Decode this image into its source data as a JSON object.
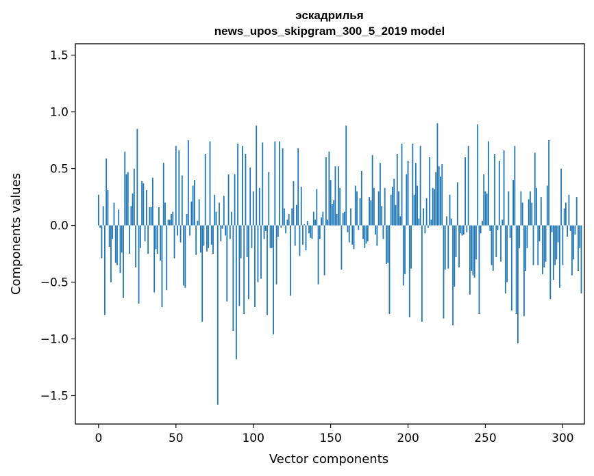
{
  "chart_data": {
    "type": "bar",
    "title": "эскадрилья",
    "subtitle": "news_upos_skipgram_300_5_2019 model",
    "xlabel": "Vector components",
    "ylabel": "Components values",
    "xlim": [
      -15,
      314
    ],
    "ylim": [
      -1.75,
      1.6
    ],
    "x_ticks": [
      0,
      50,
      100,
      150,
      200,
      250,
      300
    ],
    "x_tick_labels": [
      "0",
      "50",
      "100",
      "150",
      "200",
      "250",
      "300"
    ],
    "y_ticks": [
      -1.5,
      -1.0,
      -0.5,
      0.0,
      0.5,
      1.0,
      1.5
    ],
    "y_tick_labels": [
      "−1.5",
      "−1.0",
      "−0.5",
      "0.0",
      "0.5",
      "1.0",
      "1.5"
    ],
    "grid": false,
    "bar_color": "#1f77b4",
    "x_start": 0,
    "values": [
      0.27,
      -0.02,
      -0.29,
      0.17,
      -0.79,
      0.59,
      0.31,
      -0.19,
      -0.5,
      -0.12,
      0.2,
      -0.33,
      -0.35,
      0.14,
      -0.42,
      -0.24,
      -0.64,
      0.65,
      0.45,
      0.47,
      -0.25,
      0.17,
      0.28,
      0.5,
      -0.37,
      0.85,
      -0.69,
      -0.2,
      0.39,
      0.37,
      -0.14,
      0.31,
      -0.25,
      0.16,
      0.16,
      0.42,
      -0.59,
      -0.21,
      -0.25,
      0.16,
      -0.31,
      -0.72,
      0.55,
      0.2,
      -0.57,
      0.05,
      0.05,
      0.1,
      0.12,
      -0.29,
      0.7,
      -0.09,
      0.66,
      -0.15,
      0.44,
      -0.53,
      -0.55,
      0.1,
      0.75,
      -0.09,
      0.21,
      0.35,
      0.4,
      -0.26,
      0.04,
      0.23,
      -0.24,
      -0.85,
      -0.18,
      0.63,
      -0.23,
      -0.2,
      0.74,
      -0.17,
      -0.25,
      0.27,
      0.12,
      -1.58,
      0.2,
      -0.14,
      -0.03,
      0.26,
      -0.09,
      -0.67,
      0.45,
      -0.12,
      0.12,
      -0.93,
      0.45,
      -1.18,
      0.72,
      -0.71,
      -0.29,
      0.7,
      -0.78,
      0.63,
      -0.28,
      -0.65,
      0.51,
      -0.2,
      0.3,
      -0.72,
      0.88,
      -0.5,
      0.33,
      -0.47,
      0.73,
      -0.12,
      -0.05,
      -0.79,
      0.47,
      -0.2,
      -0.2,
      -0.96,
      0.74,
      -0.52,
      -0.1,
      0.74,
      -0.02,
      0.68,
      0.15,
      -0.07,
      0.05,
      0.1,
      -0.62,
      0.15,
      0.39,
      -0.18,
      0.18,
      0.68,
      -0.27,
      0.34,
      -0.17,
      0.01,
      -0.22,
      0.04,
      -0.07,
      -0.11,
      -0.12,
      0.12,
      0.05,
      0.32,
      -0.52,
      -0.12,
      0.07,
      0.12,
      -0.44,
      0.6,
      0.05,
      0.65,
      0.4,
      0.19,
      0.22,
      0.52,
      0.1,
      0.52,
      0.33,
      -0.39,
      0.11,
      0.12,
      0.88,
      -0.06,
      -0.15,
      0.15,
      -0.17,
      -0.21,
      0.35,
      0.3,
      -0.04,
      0.24,
      0.48,
      -0.12,
      -0.2,
      -0.16,
      -0.14,
      0.25,
      0.22,
      0.62,
      0.33,
      -0.08,
      -0.18,
      0.3,
      0.55,
      0.17,
      -0.12,
      0.33,
      -0.34,
      -0.33,
      -0.78,
      0.27,
      0.34,
      0.41,
      0.18,
      0.63,
      0.3,
      0.08,
      0.72,
      -0.53,
      -0.43,
      0.45,
      0.57,
      -0.81,
      -0.38,
      0.72,
      0.27,
      0.55,
      0.35,
      0.06,
      0.7,
      -0.85,
      0.15,
      -0.07,
      0.24,
      -0.02,
      0.6,
      0.05,
      0.33,
      0.32,
      0.47,
      0.9,
      0.52,
      0.43,
      0.54,
      -0.82,
      -0.39,
      0.08,
      -0.38,
      0.27,
      0.06,
      -0.88,
      -0.54,
      -0.28,
      0.38,
      -0.37,
      -0.07,
      -0.09,
      -0.08,
      0.6,
      -0.06,
      0.7,
      -0.61,
      -0.4,
      -0.44,
      -0.46,
      -0.3,
      0.89,
      -0.78,
      -0.07,
      0.04,
      0.45,
      0.3,
      0.28,
      0.74,
      -0.05,
      -0.35,
      -0.4,
      0.63,
      -0.28,
      -0.04,
      0.57,
      -0.32,
      0.05,
      0.66,
      -0.6,
      -0.5,
      0.3,
      -0.11,
      -0.75,
      0.4,
      0.7,
      -0.78,
      -1.04,
      -0.2,
      0.3,
      0.2,
      -0.8,
      -0.4,
      -0.2,
      0.23,
      0.3,
      0.2,
      -0.35,
      0.64,
      0.33,
      -0.35,
      -0.14,
      0.25,
      -0.43,
      -0.37,
      -0.32,
      0.35,
      0.75,
      -0.65,
      -0.06,
      -0.48,
      -0.35,
      -0.3,
      -0.15,
      -0.55,
      0.5,
      -0.35,
      0.15,
      0.2,
      -0.1,
      0.27,
      -0.05,
      -0.44,
      -0.3,
      -0.08,
      0.25,
      -0.4,
      -0.2,
      -0.6
    ]
  }
}
